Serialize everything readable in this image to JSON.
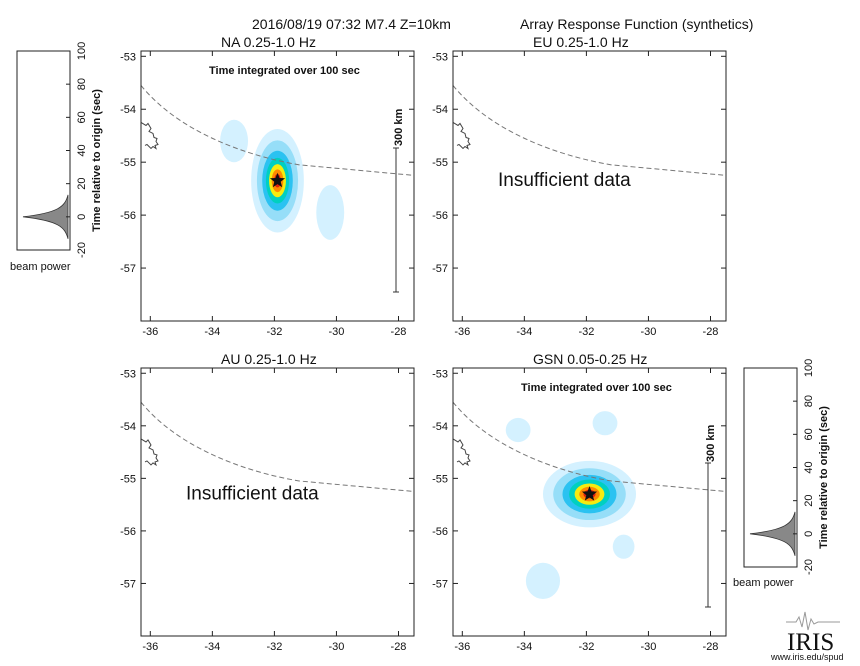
{
  "header": {
    "event": "2016/08/19 07:32  M7.4  Z=10km",
    "title": "Array Response Function (synthetics)"
  },
  "footer": {
    "logo": "IRIS",
    "url": "www.iris.edu/spud"
  },
  "colors": {
    "outer": "#cfefff",
    "mid1": "#8fdcf7",
    "mid2": "#25c0f0",
    "teal": "#00d0c0",
    "yellow": "#f6ec10",
    "orange": "#ff8a00",
    "red": "#e02010",
    "coast": "#444444",
    "trench": "#777777"
  },
  "scale_bar_label": "300 km",
  "chart_data": [
    {
      "type": "heatmap",
      "title": "NA  0.25-1.0 Hz",
      "note": "Time integrated over 100 sec",
      "xticks": [
        -36,
        -34,
        -32,
        -30,
        -28
      ],
      "yticks": [
        -53,
        -54,
        -55,
        -56,
        -57
      ],
      "xlim": [
        -36.3,
        -27.5
      ],
      "ylim": [
        -58,
        -52.9
      ],
      "epicenter": [
        -31.9,
        -55.35
      ],
      "blobs": [
        {
          "x": -31.9,
          "y": -55.35,
          "rx": 0.85,
          "ry": 0.85,
          "peak": 1.0
        },
        {
          "x": -30.2,
          "y": -55.95,
          "rx": 0.45,
          "ry": 0.45,
          "peak": 0.25
        },
        {
          "x": -33.3,
          "y": -54.6,
          "rx": 0.45,
          "ry": 0.35,
          "peak": 0.18
        }
      ],
      "has_data": true
    },
    {
      "type": "heatmap",
      "title": "EU  0.25-1.0 Hz",
      "xticks": [
        -36,
        -34,
        -32,
        -30,
        -28
      ],
      "yticks": [
        -53,
        -54,
        -55,
        -56,
        -57
      ],
      "xlim": [
        -36.3,
        -27.5
      ],
      "ylim": [
        -58,
        -52.9
      ],
      "message": "Insufficient data",
      "has_data": false
    },
    {
      "type": "heatmap",
      "title": "AU  0.25-1.0 Hz",
      "xticks": [
        -36,
        -34,
        -32,
        -30,
        -28
      ],
      "yticks": [
        -53,
        -54,
        -55,
        -56,
        -57
      ],
      "xlim": [
        -36.3,
        -27.5
      ],
      "ylim": [
        -58,
        -52.9
      ],
      "message": "Insufficient data",
      "has_data": false
    },
    {
      "type": "heatmap",
      "title": "GSN  0.05-0.25 Hz",
      "note": "Time integrated over 100 sec",
      "xticks": [
        -36,
        -34,
        -32,
        -30,
        -28
      ],
      "yticks": [
        -53,
        -54,
        -55,
        -56,
        -57
      ],
      "xlim": [
        -36.3,
        -27.5
      ],
      "ylim": [
        -58,
        -52.9
      ],
      "epicenter": [
        -31.9,
        -55.3
      ],
      "blobs": [
        {
          "x": -31.9,
          "y": -55.3,
          "rx": 1.5,
          "ry": 0.55,
          "peak": 1.0
        },
        {
          "x": -34.2,
          "y": -54.08,
          "rx": 0.4,
          "ry": 0.2,
          "peak": 0.2
        },
        {
          "x": -31.4,
          "y": -53.95,
          "rx": 0.4,
          "ry": 0.2,
          "peak": 0.2
        },
        {
          "x": -30.8,
          "y": -56.3,
          "rx": 0.35,
          "ry": 0.2,
          "peak": 0.2
        },
        {
          "x": -33.4,
          "y": -56.95,
          "rx": 0.55,
          "ry": 0.3,
          "peak": 0.2
        }
      ],
      "has_data": true
    }
  ],
  "beam_panels": [
    {
      "ylabel": "Time relative to origin (sec)",
      "xlabel": "beam power",
      "yticks": [
        100,
        80,
        60,
        40,
        20,
        0,
        -20
      ],
      "ylim": [
        -20,
        100
      ],
      "peak_time": 0
    },
    {
      "ylabel": "Time relative to origin (sec)",
      "xlabel": "beam power",
      "yticks": [
        100,
        80,
        60,
        40,
        20,
        0,
        -20
      ],
      "ylim": [
        -20,
        100
      ],
      "peak_time": 0
    }
  ]
}
